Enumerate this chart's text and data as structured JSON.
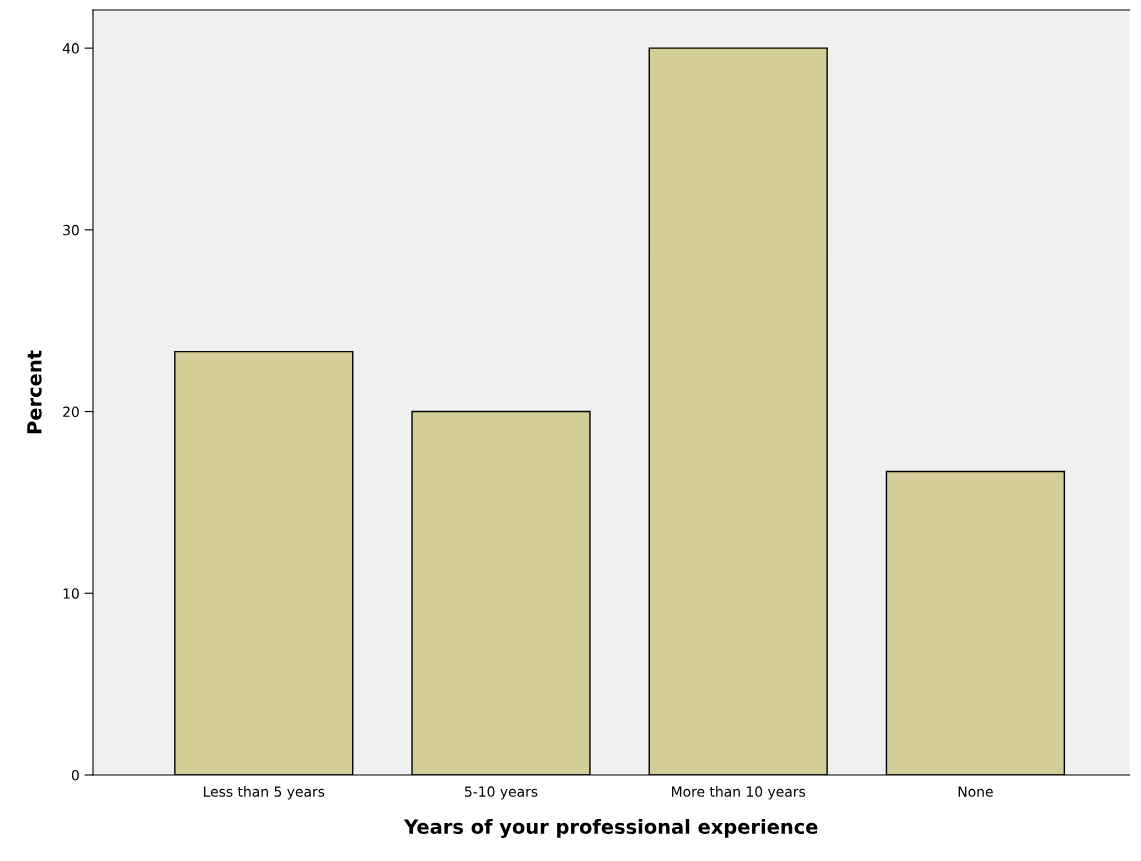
{
  "chart_data": {
    "type": "bar",
    "xlabel": "Years of your professional experience",
    "ylabel": "Percent",
    "categories": [
      "Less than 5 years",
      "5-10 years",
      "More than 10 years",
      "None"
    ],
    "values": [
      23.3,
      20.0,
      40.0,
      16.7
    ],
    "color": "#d3ce97",
    "ylim": [
      0,
      42.1
    ],
    "yticks": [
      0,
      10,
      20,
      30,
      40
    ],
    "grid": false
  }
}
